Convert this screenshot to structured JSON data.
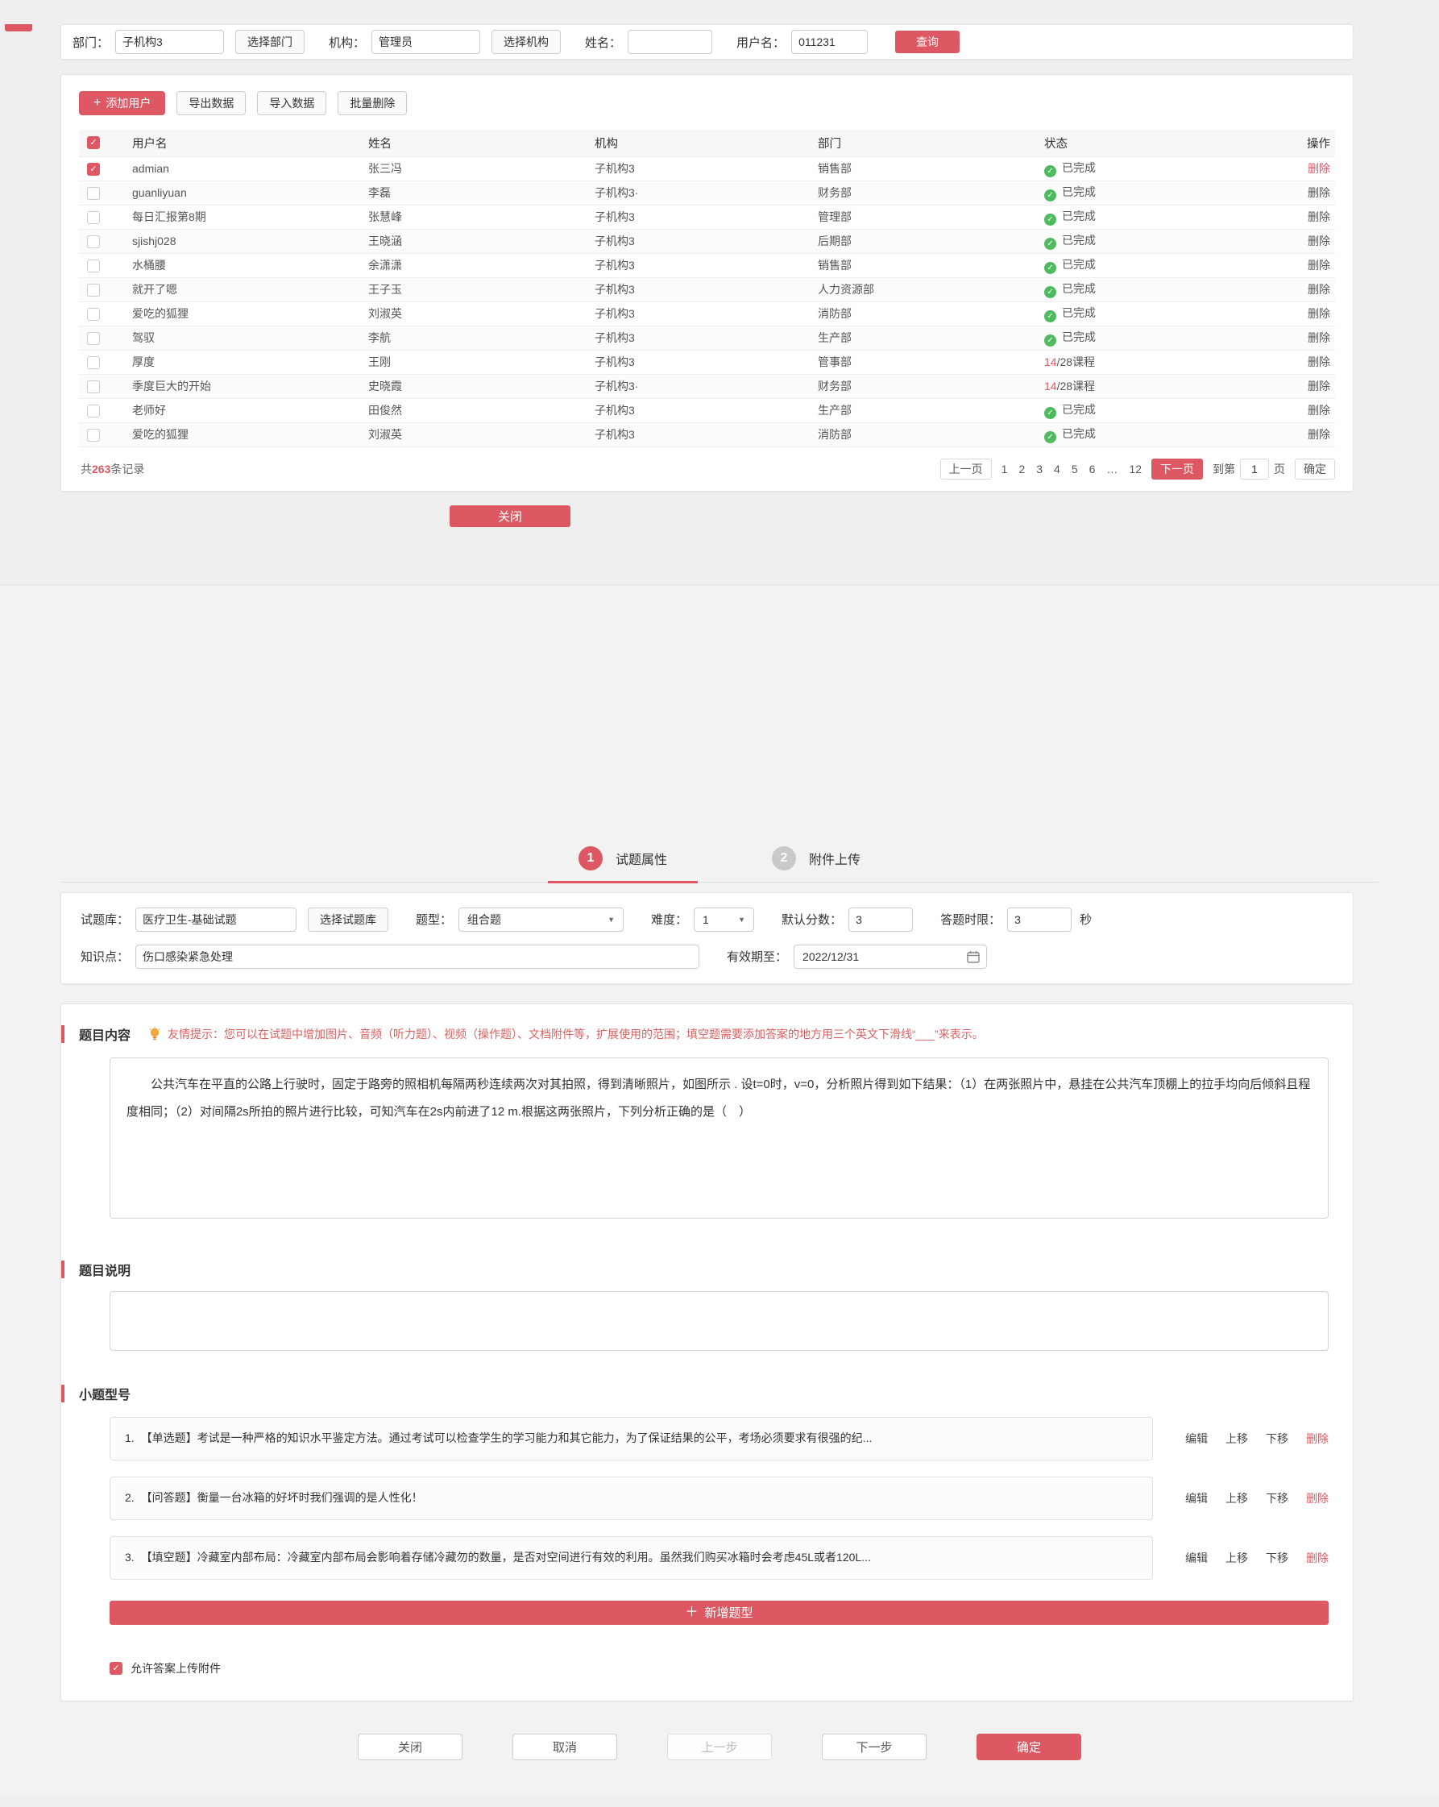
{
  "accent_color": "#dd5862",
  "status_green": "#4fba5e",
  "filters": {
    "dept_label": "部门：",
    "dept_value": "子机构3",
    "dept_button": "选择部门",
    "org_label": "机构：",
    "org_value": "管理员",
    "org_button": "选择机构",
    "name_label": "姓名：",
    "name_value": "",
    "username_label": "用户名：",
    "username_value": "011231",
    "search_button": "查询"
  },
  "toolbar": {
    "add_user": "添加用户",
    "export": "导出数据",
    "import": "导入数据",
    "batch_delete": "批量删除"
  },
  "user_table": {
    "headers": [
      "用户名",
      "姓名",
      "机构",
      "部门",
      "状态",
      "操作"
    ],
    "delete_label": "删除",
    "rows": [
      {
        "checked": true,
        "username": "admian",
        "name": "张三冯",
        "org": "子机构3",
        "dept": "销售部",
        "status_type": "done",
        "status": "已完成",
        "delete_red": true
      },
      {
        "checked": false,
        "username": "guanliyuan",
        "name": "李磊",
        "org": "子机构3·",
        "dept": "财务部",
        "status_type": "done",
        "status": "已完成",
        "delete_red": false
      },
      {
        "checked": false,
        "username": "每日汇报第8期",
        "name": "张慧峰",
        "org": "子机构3",
        "dept": "管理部",
        "status_type": "done",
        "status": "已完成",
        "delete_red": false
      },
      {
        "checked": false,
        "username": "sjishj028",
        "name": "王晓涵",
        "org": "子机构3",
        "dept": "后期部",
        "status_type": "done",
        "status": "已完成",
        "delete_red": false
      },
      {
        "checked": false,
        "username": "水桶腰",
        "name": "余潇潇",
        "org": "子机构3",
        "dept": "销售部",
        "status_type": "done",
        "status": "已完成",
        "delete_red": false
      },
      {
        "checked": false,
        "username": "就开了嗯",
        "name": "王子玉",
        "org": "子机构3",
        "dept": "人力资源部",
        "status_type": "done",
        "status": "已完成",
        "delete_red": false
      },
      {
        "checked": false,
        "username": "爱吃的狐狸",
        "name": "刘淑英",
        "org": "子机构3",
        "dept": "消防部",
        "status_type": "done",
        "status": "已完成",
        "delete_red": false
      },
      {
        "checked": false,
        "username": "驾驭",
        "name": "李航",
        "org": "子机构3",
        "dept": "生产部",
        "status_type": "done",
        "status": "已完成",
        "delete_red": false
      },
      {
        "checked": false,
        "username": "厚度",
        "name": "王刚",
        "org": "子机构3",
        "dept": "管事部",
        "status_type": "courses",
        "status_value": "14",
        "status_rest": "/28课程",
        "delete_red": false
      },
      {
        "checked": false,
        "username": "季度巨大的开始",
        "name": "史晓霞",
        "org": "子机构3·",
        "dept": "财务部",
        "status_type": "courses",
        "status_value": "14",
        "status_rest": "/28课程",
        "delete_red": false
      },
      {
        "checked": false,
        "username": "老师好",
        "name": "田俊然",
        "org": "子机构3",
        "dept": "生产部",
        "status_type": "done",
        "status": "已完成",
        "delete_red": false
      },
      {
        "checked": false,
        "username": "爱吃的狐狸",
        "name": "刘淑英",
        "org": "子机构3",
        "dept": "消防部",
        "status_type": "done",
        "status": "已完成",
        "delete_red": false
      }
    ]
  },
  "pagination": {
    "records_prefix": "共",
    "records_count": "263",
    "records_suffix": "条记录",
    "prev": "上一页",
    "pages": [
      "1",
      "2",
      "3",
      "4",
      "5",
      "6",
      "…",
      "12"
    ],
    "next": "下一页",
    "jump_prefix": "到第",
    "jump_value": "1",
    "jump_suffix": "页",
    "jump_confirm": "确定"
  },
  "modal": {
    "close_button": "关闭"
  },
  "wizard": {
    "steps": [
      {
        "number": "1",
        "label": "试题属性"
      },
      {
        "number": "2",
        "label": "附件上传"
      }
    ],
    "form": {
      "bank_label": "试题库：",
      "bank_value": "医疗卫生-基础试题",
      "bank_button": "选择试题库",
      "type_label": "题型：",
      "type_value": "组合题",
      "difficulty_label": "难度：",
      "difficulty_value": "1",
      "score_label": "默认分数：",
      "score_value": "3",
      "time_label": "答题时限：",
      "time_value": "3",
      "time_unit": "秒",
      "knowledge_label": "知识点：",
      "knowledge_value": "伤口感染紧急处理",
      "expiry_label": "有效期至：",
      "expiry_value": "2022/12/31"
    },
    "content": {
      "title": "题目内容",
      "tip": "友情提示：您可以在试题中增加图片、音频（听力题）、视频（操作题）、文档附件等，扩展使用的范围；填空题需要添加答案的地方用三个英文下滑线“___”来表示。",
      "question": "公共汽车在平直的公路上行驶时，固定于路旁的照相机每隔两秒连续两次对其拍照，得到清晰照片，如图所示 . 设t=0时，v=0，分析照片得到如下结果：（1）在两张照片中，悬挂在公共汽车顶棚上的拉手均向后倾斜且程度相同；（2）对间隔2s所拍的照片进行比较，可知汽车在2s内前进了12 m.根据这两张照片，下列分析正确的是（　）"
    },
    "explanation": {
      "title": "题目说明",
      "value": ""
    },
    "sub_questions": {
      "title": "小题型号",
      "actions": [
        "编辑",
        "上移",
        "下移",
        "删除"
      ],
      "items": [
        {
          "number": "1.",
          "text": "【单选题】考试是一种严格的知识水平鉴定方法。通过考试可以检查学生的学习能力和其它能力，为了保证结果的公平，考场必须要求有很强的纪..."
        },
        {
          "number": "2.",
          "text": "【问答题】衡量一台冰箱的好坏时我们强调的是人性化！"
        },
        {
          "number": "3.",
          "text": "【填空题】冷藏室内部布局：冷藏室内部布局会影响着存储冷藏勿的数量，是否对空间进行有效的利用。虽然我们购买冰箱时会考虑45L或者120L..."
        }
      ]
    },
    "add_button": "新增题型",
    "allow_upload_label": "允许答案上传附件",
    "allow_upload_checked": true,
    "footer_buttons": [
      {
        "label": "关闭",
        "style": "plain"
      },
      {
        "label": "取消",
        "style": "plain"
      },
      {
        "label": "上一步",
        "style": "disabled"
      },
      {
        "label": "下一步",
        "style": "plain"
      },
      {
        "label": "确定",
        "style": "primary"
      }
    ]
  }
}
